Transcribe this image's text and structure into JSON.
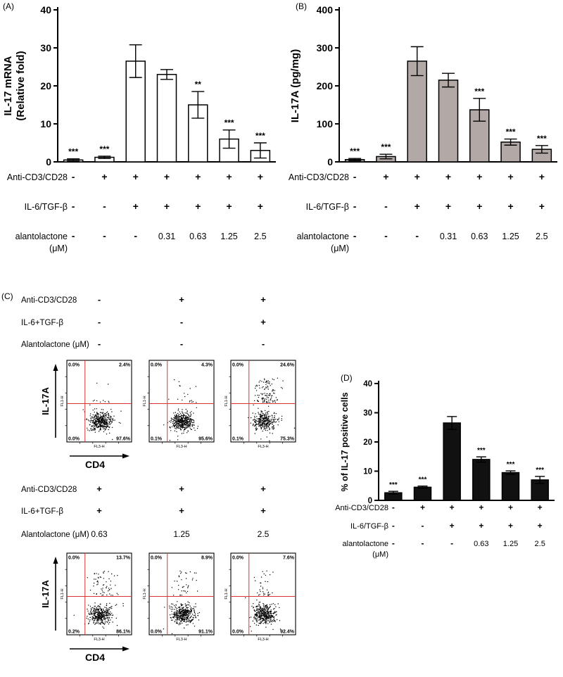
{
  "figure": {
    "background": "#ffffff",
    "flow_red": "#d93434",
    "bar_white": "#ffffff",
    "bar_gray": "#b2a9a6",
    "bar_black": "#111111"
  },
  "panels": {
    "A": {
      "label": "(A)"
    },
    "B": {
      "label": "(B)"
    },
    "C": {
      "label": "(C)"
    },
    "D": {
      "label": "(D)"
    }
  },
  "chart_data": [
    {
      "id": "A",
      "type": "bar",
      "title": "",
      "ylabel": "IL-17 mRNA (Relative fold)",
      "ylabel_lines": [
        "IL-17 mRNA",
        "(Relative fold)"
      ],
      "ylim": [
        0,
        40
      ],
      "yticks": [
        0,
        10,
        20,
        30,
        40
      ],
      "values": [
        0.5,
        1.2,
        26.5,
        23,
        15,
        6,
        3
      ],
      "errors": [
        0.3,
        0.3,
        4.3,
        1.3,
        3.5,
        2.4,
        2
      ],
      "significance": [
        "***",
        "***",
        "",
        "",
        "**",
        "***",
        "***"
      ],
      "bar_fill": "#ffffff",
      "conditions": [
        {
          "label": "Anti-CD3/CD28",
          "label_lines": [
            "Anti-CD3/CD28"
          ],
          "values": [
            "-",
            "+",
            "+",
            "+",
            "+",
            "+",
            "+"
          ]
        },
        {
          "label": "IL-6/TGF-β",
          "label_lines": [
            "IL-6/TGF-β"
          ],
          "values": [
            "-",
            "-",
            "+",
            "+",
            "+",
            "+",
            "+"
          ]
        },
        {
          "label": "alantolactone (μM)",
          "label_lines": [
            "alantolactone",
            "(μM)"
          ],
          "values": [
            "-",
            "-",
            "-",
            "0.31",
            "0.63",
            "1.25",
            "2.5"
          ]
        }
      ]
    },
    {
      "id": "B",
      "type": "bar",
      "title": "",
      "ylabel": "IL-17A (pg/mg)",
      "ylabel_lines": [
        "IL-17A (pg/mg)"
      ],
      "ylim": [
        0,
        400
      ],
      "yticks": [
        0,
        100,
        200,
        300,
        400
      ],
      "values": [
        6,
        14,
        265,
        215,
        137,
        52,
        33
      ],
      "errors": [
        3,
        6,
        38,
        18,
        30,
        8,
        10
      ],
      "significance": [
        "***",
        "***",
        "",
        "",
        "***",
        "***",
        "***"
      ],
      "bar_fill": "#b2a9a6",
      "conditions": [
        {
          "label": "Anti-CD3/CD28",
          "label_lines": [
            "Anti-CD3/CD28"
          ],
          "values": [
            "-",
            "+",
            "+",
            "+",
            "+",
            "+",
            "+"
          ]
        },
        {
          "label": "IL-6/TGF-β",
          "label_lines": [
            "IL-6/TGF-β"
          ],
          "values": [
            "-",
            "-",
            "+",
            "+",
            "+",
            "+",
            "+"
          ]
        },
        {
          "label": "alantolactone (μM)",
          "label_lines": [
            "alantolactone",
            "(μM)"
          ],
          "values": [
            "-",
            "-",
            "-",
            "0.31",
            "0.63",
            "1.25",
            "2.5"
          ]
        }
      ]
    },
    {
      "id": "D",
      "type": "bar",
      "title": "",
      "ylabel": "% of IL-17 positive cells",
      "ylabel_lines": [
        "% of IL-17 positive cells"
      ],
      "ylim": [
        0,
        40
      ],
      "yticks": [
        0,
        10,
        20,
        30,
        40
      ],
      "values": [
        2.6,
        4.5,
        26.5,
        14,
        9.5,
        7
      ],
      "errors": [
        0.5,
        0.4,
        2.2,
        0.9,
        0.6,
        1.2
      ],
      "significance": [
        "***",
        "***",
        "",
        "***",
        "***",
        "***"
      ],
      "bar_fill": "#111111",
      "conditions": [
        {
          "label": "Anti-CD3/CD28",
          "label_lines": [
            "Anti-CD3/CD28"
          ],
          "values": [
            "-",
            "+",
            "+",
            "+",
            "+",
            "+"
          ]
        },
        {
          "label": "IL-6/TGF-β",
          "label_lines": [
            "IL-6/TGF-β"
          ],
          "values": [
            "-",
            "-",
            "+",
            "+",
            "+",
            "+"
          ]
        },
        {
          "label": "alantolactone (μM)",
          "label_lines": [
            "alantolactone",
            "(μM)"
          ],
          "values": [
            "-",
            "-",
            "-",
            "0.63",
            "1.25",
            "2.5"
          ]
        }
      ]
    },
    {
      "id": "C",
      "type": "scatter",
      "kind": "flow-cytometry",
      "x_axis": "CD4",
      "y_axis": "IL-17A",
      "detector_x": "FL3-H",
      "detector_y": "FL1-H",
      "blocks": [
        {
          "conditions": [
            {
              "label": "Anti-CD3/CD28",
              "values": [
                "-",
                "+",
                "+"
              ]
            },
            {
              "label": "IL-6+TGF-β",
              "values": [
                "-",
                "-",
                "+"
              ]
            },
            {
              "label": "Alantolactone (μM)",
              "values": [
                "-",
                "-",
                "-"
              ]
            }
          ],
          "plots": [
            {
              "quadrants": {
                "upper_left": "0.0%",
                "upper_right": "2.4%",
                "lower_left": "0.0%",
                "lower_right": "97.6%"
              }
            },
            {
              "quadrants": {
                "upper_left": "0.0%",
                "upper_right": "4.3%",
                "lower_left": "0.1%",
                "lower_right": "95.6%"
              }
            },
            {
              "quadrants": {
                "upper_left": "0.0%",
                "upper_right": "24.6%",
                "lower_left": "0.1%",
                "lower_right": "75.3%"
              }
            }
          ]
        },
        {
          "conditions": [
            {
              "label": "Anti-CD3/CD28",
              "values": [
                "+",
                "+",
                "+"
              ]
            },
            {
              "label": "IL-6+TGF-β",
              "values": [
                "+",
                "+",
                "+"
              ]
            },
            {
              "label": "Alantolactone (μM)",
              "values": [
                "0.63",
                "1.25",
                "2.5"
              ]
            }
          ],
          "plots": [
            {
              "quadrants": {
                "upper_left": "0.0%",
                "upper_right": "13.7%",
                "lower_left": "0.2%",
                "lower_right": "86.1%"
              }
            },
            {
              "quadrants": {
                "upper_left": "0.0%",
                "upper_right": "8.9%",
                "lower_left": "0.0%",
                "lower_right": "91.1%"
              }
            },
            {
              "quadrants": {
                "upper_left": "0.0%",
                "upper_right": "7.6%",
                "lower_left": "0.0%",
                "lower_right": "92.4%"
              }
            }
          ]
        }
      ]
    }
  ]
}
